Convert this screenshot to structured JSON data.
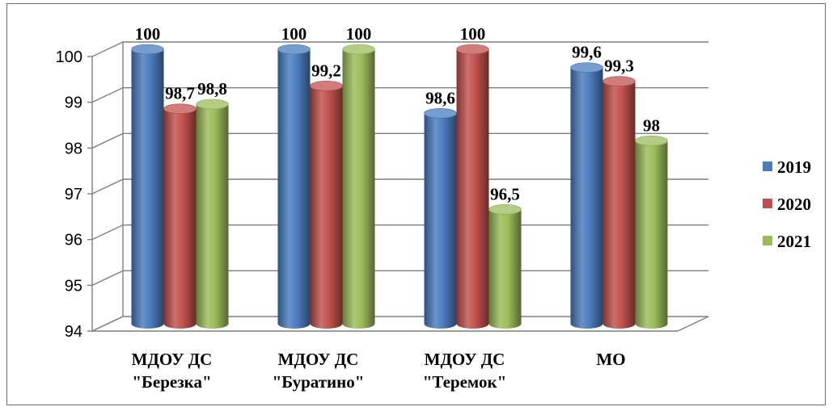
{
  "chart_data": {
    "type": "bar",
    "three_d": true,
    "categories": [
      [
        "МДОУ ДС",
        "\"Березка\""
      ],
      [
        "МДОУ ДС",
        "\"Буратино\""
      ],
      [
        "МДОУ ДС",
        "\"Теремок\""
      ],
      [
        "МО"
      ]
    ],
    "series": [
      {
        "name": "2019",
        "color": "#4a7bbd",
        "values": [
          100,
          100,
          98.6,
          99.6
        ],
        "labels": [
          "100",
          "100",
          "98,6",
          "99,6"
        ]
      },
      {
        "name": "2020",
        "color": "#c0504d",
        "values": [
          98.7,
          99.2,
          100,
          99.3
        ],
        "labels": [
          "98,7",
          "99,2",
          "100",
          "99,3"
        ]
      },
      {
        "name": "2021",
        "color": "#9bbb59",
        "values": [
          98.8,
          100,
          96.5,
          98
        ],
        "labels": [
          "98,8",
          "100",
          "96,5",
          "98"
        ]
      }
    ],
    "y_ticks": [
      "94",
      "95",
      "96",
      "97",
      "98",
      "99",
      "100"
    ],
    "ylim": [
      94,
      100
    ],
    "grid": true,
    "legend_position": "right"
  }
}
